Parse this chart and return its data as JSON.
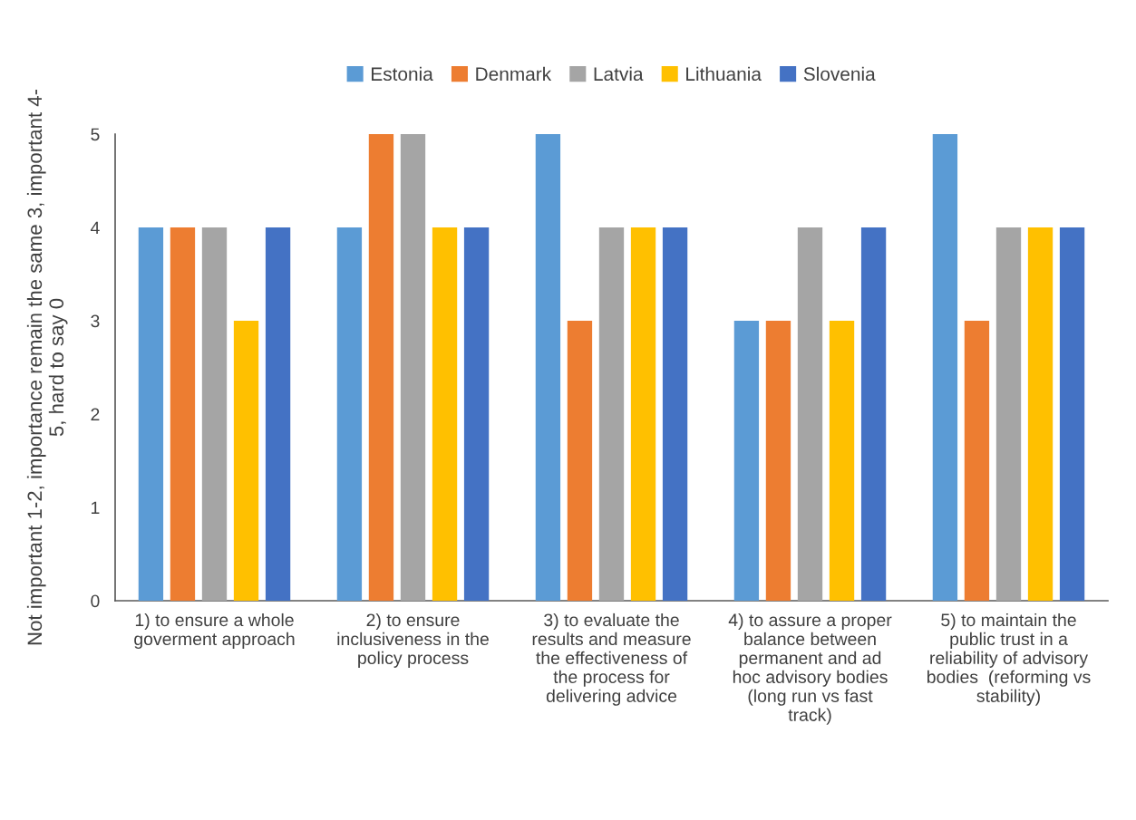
{
  "chart_data": {
    "type": "bar",
    "ylabel": "Not important 1-2, importance remain the same 3, important 4-\n5, hard to say 0",
    "categories": [
      "1) to ensure a whole\ngoverment approach",
      "2) to ensure\ninclusiveness in the\npolicy process",
      "3) to evaluate the\nresults and measure\nthe effectiveness of\nthe process for\ndelivering advice",
      "4) to assure a proper\nbalance between\npermanent and ad\nhoc advisory bodies\n(long run vs fast\ntrack)",
      "5) to maintain the\npublic trust in a\nreliability of advisory\nbodies  (reforming vs\nstability)"
    ],
    "series": [
      {
        "name": "Estonia",
        "color": "#5b9bd5",
        "values": [
          4,
          4,
          5,
          3,
          5
        ]
      },
      {
        "name": "Denmark",
        "color": "#ed7d31",
        "values": [
          4,
          5,
          3,
          3,
          3
        ]
      },
      {
        "name": "Latvia",
        "color": "#a5a5a5",
        "values": [
          4,
          5,
          4,
          4,
          4
        ]
      },
      {
        "name": "Lithuania",
        "color": "#ffc000",
        "values": [
          3,
          4,
          4,
          3,
          4
        ]
      },
      {
        "name": "Slovenia",
        "color": "#4472c4",
        "values": [
          4,
          4,
          4,
          4,
          4
        ]
      }
    ],
    "ylim": [
      0,
      5
    ],
    "yticks": [
      0,
      1,
      2,
      3,
      4,
      5
    ],
    "grid": false,
    "legend": "top"
  }
}
